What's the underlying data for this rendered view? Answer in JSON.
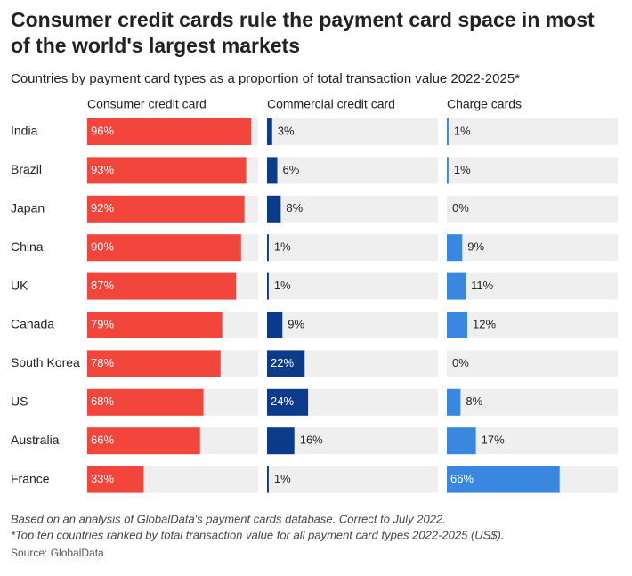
{
  "chart_data": {
    "type": "bar",
    "title": [
      "Consumer credit cards rule the payment card space in most",
      "of the world's largest markets"
    ],
    "subtitle": "Countries by payment card types as a proportion of total transaction value 2022-2025*",
    "categories": [
      "India",
      "Brazil",
      "Japan",
      "China",
      "UK",
      "Canada",
      "South Korea",
      "US",
      "Australia",
      "France"
    ],
    "series": [
      {
        "name": "Consumer credit card",
        "color": "#f2453b",
        "values": [
          96,
          93,
          92,
          90,
          87,
          79,
          78,
          68,
          66,
          33
        ],
        "value_labels": [
          "96%",
          "93%",
          "92%",
          "90%",
          "87%",
          "79%",
          "78%",
          "68%",
          "66%",
          "33%"
        ]
      },
      {
        "name": "Commercial credit card",
        "color": "#0c3b8c",
        "values": [
          3,
          6,
          8,
          1,
          1,
          9,
          22,
          24,
          16,
          1
        ],
        "value_labels": [
          "3%",
          "6%",
          "8%",
          "1%",
          "1%",
          "9%",
          "22%",
          "24%",
          "16%",
          "1%"
        ]
      },
      {
        "name": "Charge cards",
        "color": "#3a87e0",
        "values": [
          1,
          1,
          0,
          9,
          11,
          12,
          0,
          8,
          17,
          66
        ],
        "value_labels": [
          "1%",
          "1%",
          "0%",
          "9%",
          "11%",
          "12%",
          "0%",
          "8%",
          "17%",
          "66%"
        ]
      }
    ],
    "xlim": [
      0,
      100
    ],
    "notes": [
      "Based on an analysis of GlobalData's payment cards database. Correct to July 2022.",
      "*Top ten countries ranked by total transaction value for all payment card types 2022-2025 (US$)."
    ],
    "source": "Source: GlobalData"
  }
}
